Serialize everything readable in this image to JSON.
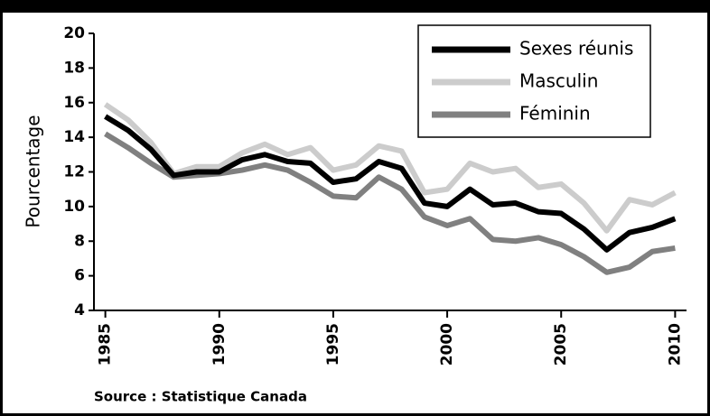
{
  "chart_data": {
    "type": "line",
    "y_label": "Pourcentage",
    "source": "Source : Statistique Canada",
    "x": [
      1985,
      1986,
      1987,
      1988,
      1989,
      1990,
      1991,
      1992,
      1993,
      1994,
      1995,
      1996,
      1997,
      1998,
      1999,
      2000,
      2001,
      2002,
      2003,
      2004,
      2005,
      2006,
      2007,
      2008,
      2009,
      2010
    ],
    "series": [
      {
        "name": "Sexes réunis",
        "color": "#000000",
        "values": [
          15.2,
          14.4,
          13.3,
          11.8,
          12.0,
          12.0,
          12.7,
          13.0,
          12.6,
          12.5,
          11.4,
          11.6,
          12.6,
          12.2,
          10.2,
          10.0,
          11.0,
          10.1,
          10.2,
          9.7,
          9.6,
          8.7,
          7.5,
          8.5,
          8.8,
          9.3
        ]
      },
      {
        "name": "Masculin",
        "color": "#cccccc",
        "values": [
          15.9,
          15.0,
          13.7,
          11.9,
          12.3,
          12.3,
          13.1,
          13.6,
          13.0,
          13.4,
          12.1,
          12.4,
          13.5,
          13.2,
          10.8,
          11.0,
          12.5,
          12.0,
          12.2,
          11.1,
          11.3,
          10.2,
          8.6,
          10.4,
          10.1,
          10.8
        ]
      },
      {
        "name": "Féminin",
        "color": "#808080",
        "values": [
          14.2,
          13.4,
          12.5,
          11.7,
          11.8,
          11.9,
          12.1,
          12.4,
          12.1,
          11.4,
          10.6,
          10.5,
          11.7,
          11.0,
          9.4,
          8.9,
          9.3,
          8.1,
          8.0,
          8.2,
          7.8,
          7.1,
          6.2,
          6.5,
          7.4,
          7.6
        ]
      }
    ],
    "xlim": [
      1984.5,
      2010.5
    ],
    "xticks": [
      1985,
      1990,
      1995,
      2000,
      2005,
      2010
    ],
    "ylim": [
      4,
      20
    ],
    "yticks": [
      4,
      6,
      8,
      10,
      12,
      14,
      16,
      18,
      20
    ]
  }
}
